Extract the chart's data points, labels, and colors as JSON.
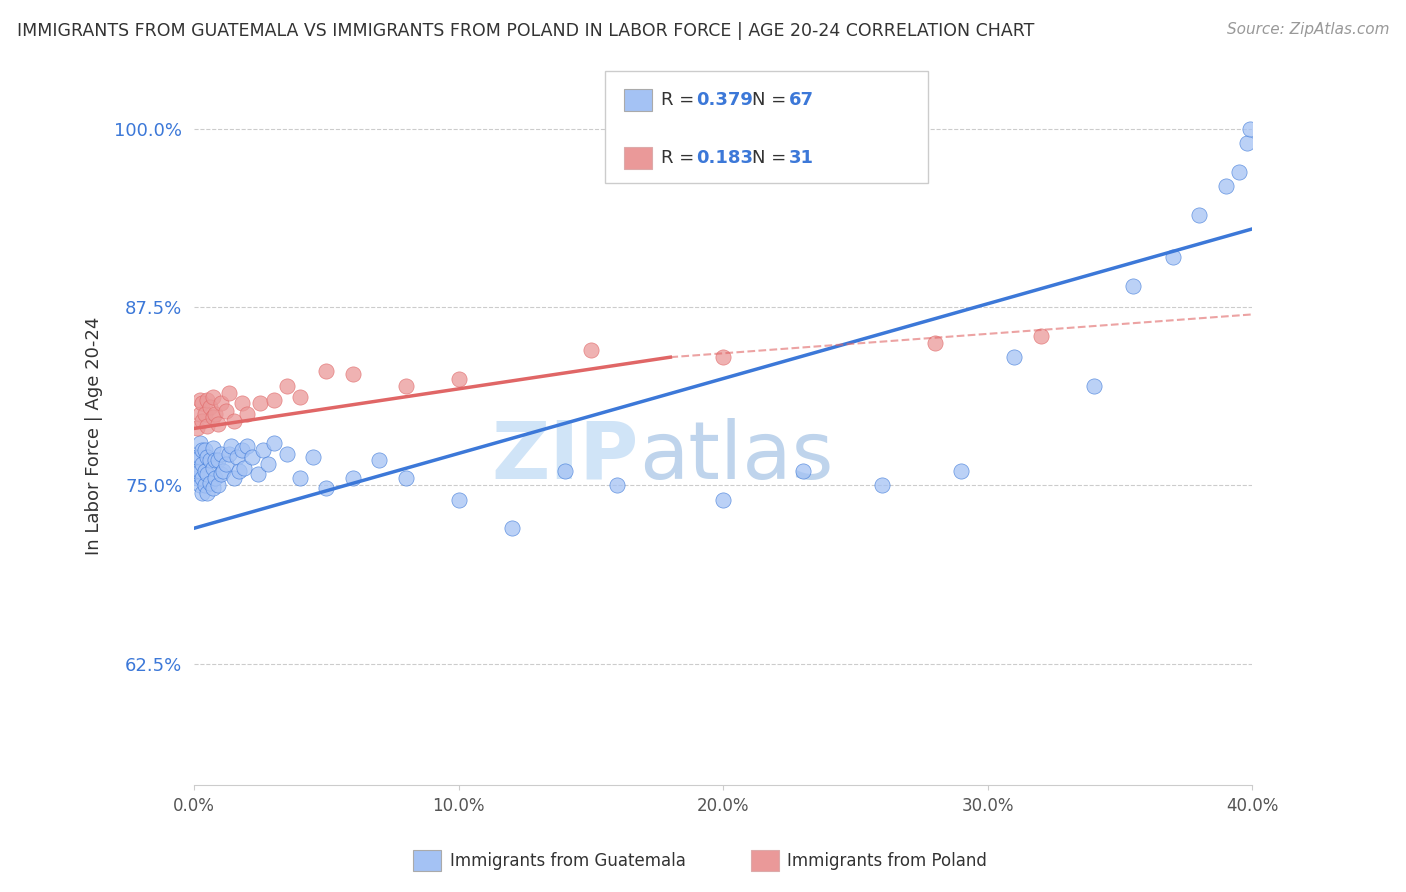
{
  "title": "IMMIGRANTS FROM GUATEMALA VS IMMIGRANTS FROM POLAND IN LABOR FORCE | AGE 20-24 CORRELATION CHART",
  "source": "Source: ZipAtlas.com",
  "ylabel": "In Labor Force | Age 20-24",
  "xlim": [
    0.0,
    0.4
  ],
  "ylim": [
    0.54,
    1.03
  ],
  "yticks": [
    0.625,
    0.75,
    0.875,
    1.0
  ],
  "ytick_labels": [
    "62.5%",
    "75.0%",
    "87.5%",
    "100.0%"
  ],
  "xticks": [
    0.0,
    0.1,
    0.2,
    0.3,
    0.4
  ],
  "xtick_labels": [
    "0.0%",
    "10.0%",
    "20.0%",
    "30.0%",
    "40.0%"
  ],
  "legend_r_guatemala": "R = 0.379",
  "legend_n_guatemala": "N = 67",
  "legend_r_poland": "R = 0.183",
  "legend_n_poland": "N = 31",
  "color_guatemala": "#a4c2f4",
  "color_poland": "#ea9999",
  "color_line_guatemala": "#3c78d8",
  "color_line_poland": "#e06666",
  "color_tick_label": "#3c78d8",
  "watermark_color": "#d0e4f7",
  "guatemala_x": [
    0.001,
    0.001,
    0.001,
    0.002,
    0.002,
    0.002,
    0.002,
    0.003,
    0.003,
    0.003,
    0.003,
    0.004,
    0.004,
    0.004,
    0.005,
    0.005,
    0.005,
    0.006,
    0.006,
    0.007,
    0.007,
    0.007,
    0.008,
    0.008,
    0.009,
    0.009,
    0.01,
    0.01,
    0.011,
    0.012,
    0.013,
    0.014,
    0.015,
    0.016,
    0.017,
    0.018,
    0.019,
    0.02,
    0.022,
    0.024,
    0.026,
    0.028,
    0.03,
    0.035,
    0.04,
    0.045,
    0.05,
    0.06,
    0.07,
    0.08,
    0.1,
    0.12,
    0.14,
    0.16,
    0.2,
    0.23,
    0.26,
    0.29,
    0.31,
    0.34,
    0.355,
    0.37,
    0.38,
    0.39,
    0.395,
    0.398,
    0.399
  ],
  "guatemala_y": [
    0.755,
    0.76,
    0.77,
    0.75,
    0.76,
    0.77,
    0.78,
    0.745,
    0.755,
    0.765,
    0.775,
    0.75,
    0.76,
    0.775,
    0.745,
    0.758,
    0.77,
    0.752,
    0.768,
    0.748,
    0.762,
    0.776,
    0.755,
    0.768,
    0.75,
    0.768,
    0.758,
    0.772,
    0.76,
    0.765,
    0.772,
    0.778,
    0.755,
    0.77,
    0.76,
    0.775,
    0.762,
    0.778,
    0.77,
    0.758,
    0.775,
    0.765,
    0.78,
    0.772,
    0.755,
    0.77,
    0.748,
    0.755,
    0.768,
    0.755,
    0.74,
    0.72,
    0.76,
    0.75,
    0.74,
    0.76,
    0.75,
    0.76,
    0.84,
    0.82,
    0.89,
    0.91,
    0.94,
    0.96,
    0.97,
    0.99,
    1.0
  ],
  "poland_x": [
    0.001,
    0.002,
    0.002,
    0.003,
    0.003,
    0.004,
    0.005,
    0.005,
    0.006,
    0.007,
    0.007,
    0.008,
    0.009,
    0.01,
    0.012,
    0.013,
    0.015,
    0.018,
    0.02,
    0.025,
    0.03,
    0.035,
    0.04,
    0.05,
    0.06,
    0.08,
    0.1,
    0.15,
    0.2,
    0.28,
    0.32
  ],
  "poland_y": [
    0.79,
    0.8,
    0.81,
    0.795,
    0.808,
    0.8,
    0.792,
    0.81,
    0.805,
    0.798,
    0.812,
    0.8,
    0.793,
    0.808,
    0.802,
    0.815,
    0.795,
    0.808,
    0.8,
    0.808,
    0.81,
    0.82,
    0.812,
    0.83,
    0.828,
    0.82,
    0.825,
    0.845,
    0.84,
    0.85,
    0.855
  ],
  "line_guat_x0": 0.0,
  "line_guat_y0": 0.72,
  "line_guat_x1": 0.4,
  "line_guat_y1": 0.93,
  "line_pol_solid_x0": 0.0,
  "line_pol_solid_y0": 0.79,
  "line_pol_solid_x1": 0.18,
  "line_pol_solid_y1": 0.84,
  "line_pol_dash_x0": 0.18,
  "line_pol_dash_y0": 0.84,
  "line_pol_dash_x1": 0.4,
  "line_pol_dash_y1": 0.87
}
